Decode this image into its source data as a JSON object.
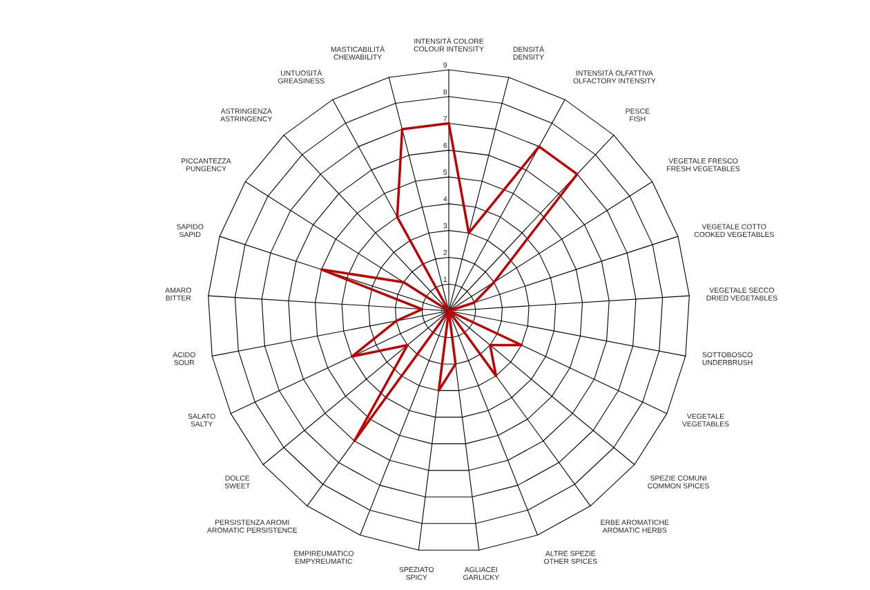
{
  "chart_data": {
    "type": "radar",
    "categories": [
      "INTENSITÀ COLORE\nCOLOUR INTENSITY",
      "DENSITÀ\nDENSITY",
      "INTENSITÀ OLFATTIVA\nOLFACTORY INTENSITY",
      "PESCE\nFISH",
      "VEGETALE FRESCO\nFRESH VEGETABLES",
      "VEGETALE COTTO\nCOOKED VEGETABLES",
      "VEGETALE SECCO\nDRIED VEGETABLES",
      "SOTTOBOSCO\nUNDERBRUSH",
      "VEGETALE\nVEGETABLES",
      "SPEZIE COMUNI\nCOMMON SPICES",
      "ERBE AROMATICHE\nAROMATIC HERBS",
      "ALTRE SPEZIE\nOTHER SPICES",
      "AGLIACEI\nGARLICKY",
      "SPEZIATO\nSPICY",
      "EMPIREUMATICO\nEMPYREUMATIC",
      "PERSISTENZA AROMI\nAROMATIC PERSISTENCE",
      "DOLCE\nSWEET",
      "SALATO\nSALTY",
      "ACIDO\nSOUR",
      "AMARO\nBITTER",
      "SAPIDO\nSAPID",
      "PICCANTEZZA\nPUNGENCY",
      "ASTRINGENZA\nASTRINGENCY",
      "UNTUOSITÀ\nGREASINESS",
      "MASTICABILITÀ\nCHEWABILITY"
    ],
    "series": [
      {
        "color": "#c00000",
        "values": [
          7,
          3,
          7,
          7,
          2,
          1,
          0,
          0,
          3,
          2,
          3,
          0,
          2,
          3,
          0,
          6,
          2,
          4,
          2,
          1,
          5,
          2,
          0,
          4,
          7
        ]
      }
    ],
    "ylim": [
      0,
      9
    ],
    "yticks": [
      0,
      1,
      2,
      3,
      4,
      5,
      6,
      7,
      8,
      9
    ],
    "grid": true
  }
}
